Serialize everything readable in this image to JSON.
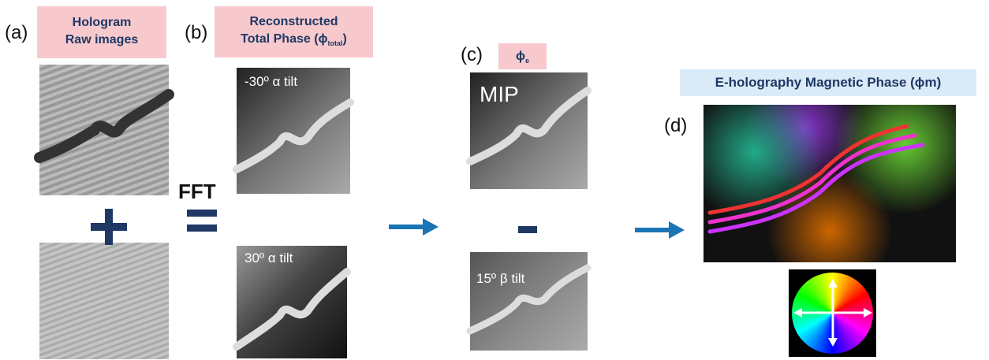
{
  "panels": {
    "a": {
      "label": "(a)",
      "title_line1": "Hologram",
      "title_line2": "Raw images"
    },
    "b": {
      "label": "(b)",
      "title_line1": "Reconstructed",
      "title_line2": "Total Phase (ϕ",
      "title_sub": "total",
      "title_end": ")",
      "method": "FFT",
      "image1_caption": "-30º α tilt",
      "image2_caption": "30º α tilt"
    },
    "c": {
      "label": "(c)",
      "title": "ϕ",
      "title_sub": "e",
      "image1_caption": "MIP",
      "image2_caption": "15º β tilt"
    },
    "d": {
      "label": "(d)",
      "title": "E-holography Magnetic Phase (ϕm)"
    }
  }
}
